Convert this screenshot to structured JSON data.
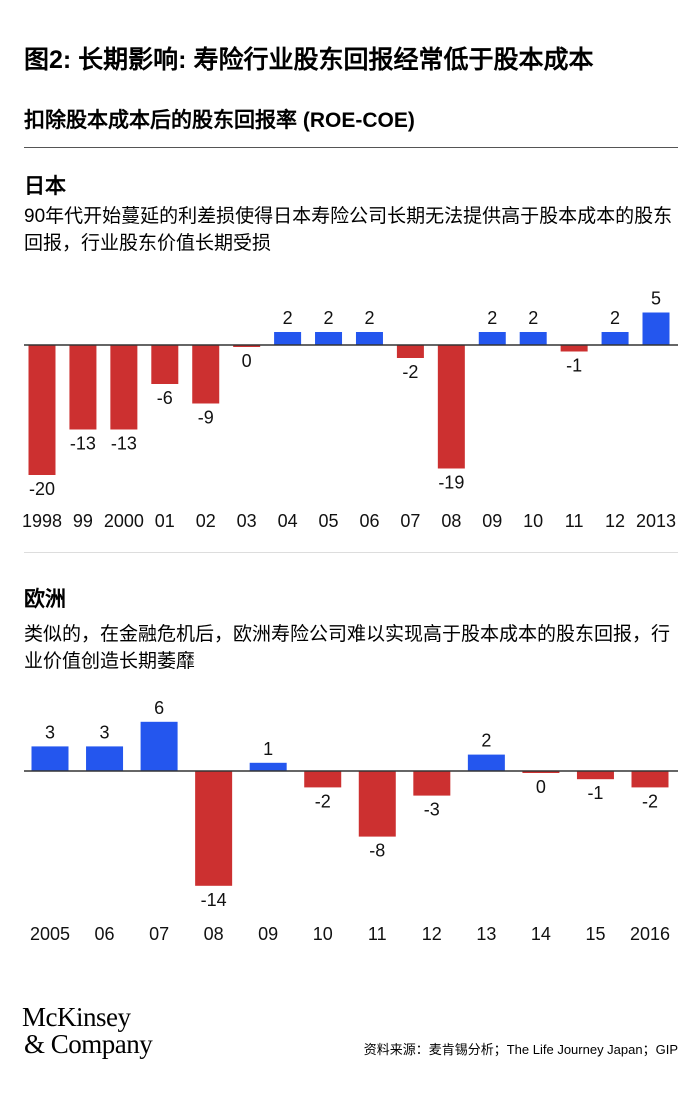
{
  "title": "图2: 长期影响: 寿险行业股东回报经常低于股本成本",
  "subtitle": "扣除股本成本后的股东回报率 (ROE-COE)",
  "colors": {
    "positive": "#2456ee",
    "negative": "#cc3030"
  },
  "chart_data": [
    {
      "type": "bar",
      "title": "日本",
      "description": "90年代开始蔓延的利差损使得日本寿险公司长期无法提供高于股本成本的股东回报，行业股东价值长期受损",
      "categories": [
        "1998",
        "99",
        "2000",
        "01",
        "02",
        "03",
        "04",
        "05",
        "06",
        "07",
        "08",
        "09",
        "10",
        "11",
        "12",
        "2013"
      ],
      "values": [
        -20,
        -13,
        -13,
        -6,
        -9,
        0,
        2,
        2,
        2,
        -2,
        -19,
        2,
        2,
        -1,
        2,
        5
      ],
      "xlabel": "",
      "ylabel": "ROE-COE"
    },
    {
      "type": "bar",
      "title": "欧洲",
      "description": "类似的，在金融危机后，欧洲寿险公司难以实现高于股本成本的股东回报，行业价值创造长期萎靡",
      "categories": [
        "2005",
        "06",
        "07",
        "08",
        "09",
        "10",
        "11",
        "12",
        "13",
        "14",
        "15",
        "2016"
      ],
      "values": [
        3,
        3,
        6,
        -14,
        1,
        -2,
        -8,
        -3,
        2,
        0,
        -1,
        -2
      ],
      "xlabel": "",
      "ylabel": "ROE-COE"
    }
  ],
  "footer": {
    "logo_line1": "McKinsey",
    "logo_line2": "& Company",
    "source": "资料来源：麦肯锡分析；The Life Journey Japan；GIP"
  }
}
